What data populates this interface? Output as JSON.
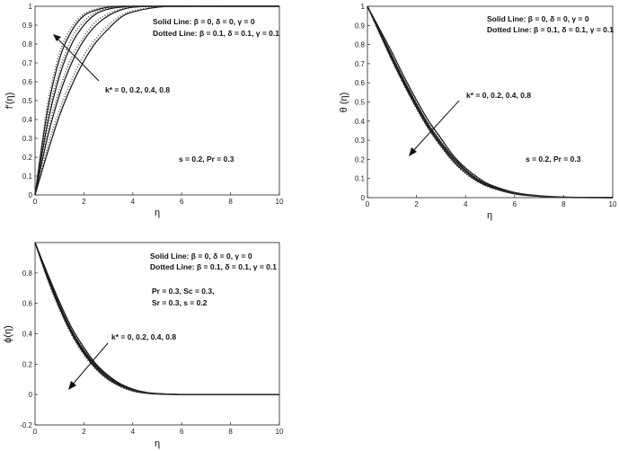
{
  "figure": {
    "panels": [
      {
        "xlabel": "η",
        "ylabel": "f′(η)",
        "legend_solid": "Solid Line: β = 0, δ = 0, γ = 0",
        "legend_dotted": "Dotted Line: β = 0.1, δ = 0.1, γ = 0.1",
        "param_label": "k* = 0, 0.2, 0.4, 0.8",
        "note_lines": [
          "s = 0.2, Pr = 0.3"
        ]
      },
      {
        "xlabel": "η",
        "ylabel": "θ (η)",
        "legend_solid": "Solid Line: β = 0, δ = 0, γ = 0",
        "legend_dotted": "Dotted Line: β = 0.1, δ = 0.1, γ = 0.1",
        "param_label": "k* = 0, 0.2, 0.4, 0.8",
        "note_lines": [
          "s = 0.2, Pr = 0.3"
        ]
      },
      {
        "xlabel": "η",
        "ylabel": "ϕ(η)",
        "legend_solid": "Solid Line: β = 0, δ = 0, γ = 0",
        "legend_dotted": "Dotted Line: β = 0.1, δ = 0.1, γ = 0.1",
        "param_label": "k* = 0, 0.2, 0.4, 0.8",
        "note_lines": [
          "Pr = 0.3, Sc = 0.3,",
          "Sr = 0.3, s = 0.2"
        ]
      }
    ]
  },
  "chart_data": [
    {
      "type": "line",
      "xlim": [
        0,
        10
      ],
      "ylim": [
        0,
        1
      ],
      "xticks": [
        "0",
        "2",
        "4",
        "6",
        "8",
        "10"
      ],
      "yticks": [
        "0",
        "0.1",
        "0.2",
        "0.3",
        "0.4",
        "0.5",
        "0.6",
        "0.7",
        "0.8",
        "0.9",
        "1"
      ],
      "x": [
        0,
        0.5,
        1,
        1.5,
        2,
        2.5,
        3,
        3.5,
        4,
        5,
        6,
        8,
        10
      ],
      "series": [
        {
          "style": "solid",
          "values": [
            0,
            0.44,
            0.72,
            0.87,
            0.95,
            0.98,
            0.995,
            1,
            1,
            1,
            1,
            1,
            1
          ]
        },
        {
          "style": "solid",
          "values": [
            0,
            0.37,
            0.63,
            0.8,
            0.9,
            0.96,
            0.985,
            0.995,
            1,
            1,
            1,
            1,
            1
          ]
        },
        {
          "style": "solid",
          "values": [
            0,
            0.3,
            0.53,
            0.7,
            0.82,
            0.9,
            0.95,
            0.98,
            0.995,
            1,
            1,
            1,
            1
          ]
        },
        {
          "style": "solid",
          "values": [
            0,
            0.22,
            0.42,
            0.58,
            0.71,
            0.81,
            0.88,
            0.94,
            0.97,
            0.995,
            1,
            1,
            1
          ]
        },
        {
          "style": "dotted",
          "values": [
            0,
            0.47,
            0.75,
            0.89,
            0.96,
            0.985,
            0.997,
            1,
            1,
            1,
            1,
            1,
            1
          ]
        },
        {
          "style": "dotted",
          "values": [
            0,
            0.4,
            0.66,
            0.83,
            0.92,
            0.97,
            0.99,
            0.997,
            1,
            1,
            1,
            1,
            1
          ]
        },
        {
          "style": "dotted",
          "values": [
            0,
            0.33,
            0.56,
            0.73,
            0.84,
            0.92,
            0.96,
            0.985,
            0.997,
            1,
            1,
            1,
            1
          ]
        },
        {
          "style": "dotted",
          "values": [
            0,
            0.25,
            0.45,
            0.61,
            0.74,
            0.83,
            0.9,
            0.95,
            0.975,
            0.997,
            1,
            1,
            1
          ]
        }
      ]
    },
    {
      "type": "line",
      "xlim": [
        0,
        10
      ],
      "ylim": [
        0,
        1
      ],
      "xticks": [
        "0",
        "2",
        "4",
        "6",
        "8",
        "10"
      ],
      "yticks": [
        "0",
        "0.1",
        "0.2",
        "0.3",
        "0.4",
        "0.5",
        "0.6",
        "0.7",
        "0.8",
        "0.9",
        "1"
      ],
      "x": [
        0,
        0.5,
        1,
        1.5,
        2,
        2.5,
        3,
        3.5,
        4,
        4.5,
        5,
        6,
        7,
        8,
        9,
        10
      ],
      "series": [
        {
          "style": "solid",
          "values": [
            1,
            0.86,
            0.72,
            0.59,
            0.47,
            0.36,
            0.27,
            0.19,
            0.13,
            0.085,
            0.055,
            0.02,
            0.007,
            0.002,
            0.0005,
            0
          ]
        },
        {
          "style": "solid",
          "values": [
            1,
            0.865,
            0.73,
            0.6,
            0.48,
            0.37,
            0.28,
            0.2,
            0.14,
            0.09,
            0.06,
            0.022,
            0.008,
            0.002,
            0.0005,
            0
          ]
        },
        {
          "style": "solid",
          "values": [
            1,
            0.87,
            0.74,
            0.61,
            0.49,
            0.38,
            0.29,
            0.21,
            0.145,
            0.095,
            0.063,
            0.024,
            0.009,
            0.0025,
            0.0006,
            0
          ]
        },
        {
          "style": "solid",
          "values": [
            1,
            0.88,
            0.76,
            0.63,
            0.51,
            0.4,
            0.31,
            0.22,
            0.155,
            0.105,
            0.068,
            0.027,
            0.01,
            0.003,
            0.0007,
            0
          ]
        },
        {
          "style": "dotted",
          "values": [
            1,
            0.855,
            0.715,
            0.585,
            0.465,
            0.355,
            0.265,
            0.185,
            0.125,
            0.082,
            0.053,
            0.019,
            0.0065,
            0.0018,
            0.0004,
            0
          ]
        },
        {
          "style": "dotted",
          "values": [
            1,
            0.86,
            0.725,
            0.595,
            0.475,
            0.365,
            0.275,
            0.195,
            0.135,
            0.088,
            0.058,
            0.021,
            0.0075,
            0.002,
            0.0005,
            0
          ]
        },
        {
          "style": "dotted",
          "values": [
            1,
            0.865,
            0.735,
            0.605,
            0.485,
            0.375,
            0.285,
            0.205,
            0.142,
            0.093,
            0.061,
            0.023,
            0.0085,
            0.0023,
            0.0006,
            0
          ]
        },
        {
          "style": "dotted",
          "values": [
            1,
            0.875,
            0.755,
            0.625,
            0.505,
            0.395,
            0.305,
            0.215,
            0.15,
            0.1,
            0.066,
            0.026,
            0.0095,
            0.0028,
            0.0007,
            0
          ]
        }
      ]
    },
    {
      "type": "line",
      "xlim": [
        0,
        10
      ],
      "ylim": [
        -0.2,
        1
      ],
      "xticks": [
        "0",
        "2",
        "4",
        "6",
        "8",
        "10"
      ],
      "yticks": [
        "-0.2",
        "0",
        "0.2",
        "0.4",
        "0.6",
        "0.8"
      ],
      "x": [
        0,
        0.5,
        1,
        1.5,
        2,
        2.5,
        3,
        3.5,
        4,
        4.5,
        5,
        6,
        7,
        8,
        10
      ],
      "series": [
        {
          "style": "solid",
          "values": [
            1,
            0.77,
            0.57,
            0.4,
            0.27,
            0.17,
            0.1,
            0.055,
            0.025,
            0.01,
            0.004,
            0,
            0,
            0,
            0
          ]
        },
        {
          "style": "solid",
          "values": [
            1,
            0.78,
            0.58,
            0.41,
            0.28,
            0.18,
            0.11,
            0.06,
            0.028,
            0.012,
            0.005,
            0,
            0,
            0,
            0
          ]
        },
        {
          "style": "solid",
          "values": [
            1,
            0.79,
            0.59,
            0.42,
            0.29,
            0.19,
            0.115,
            0.065,
            0.032,
            0.014,
            0.006,
            0,
            0,
            0,
            0
          ]
        },
        {
          "style": "solid",
          "values": [
            1,
            0.8,
            0.61,
            0.44,
            0.31,
            0.2,
            0.125,
            0.07,
            0.036,
            0.016,
            0.007,
            0,
            0,
            0,
            0
          ]
        },
        {
          "style": "dotted",
          "values": [
            1,
            0.76,
            0.56,
            0.39,
            0.26,
            0.165,
            0.095,
            0.05,
            0.022,
            0.009,
            0.003,
            0,
            0,
            0,
            0
          ]
        },
        {
          "style": "dotted",
          "values": [
            1,
            0.77,
            0.57,
            0.4,
            0.27,
            0.175,
            0.105,
            0.055,
            0.025,
            0.011,
            0.004,
            0,
            0,
            0,
            0
          ]
        },
        {
          "style": "dotted",
          "values": [
            1,
            0.78,
            0.58,
            0.41,
            0.28,
            0.185,
            0.11,
            0.06,
            0.03,
            0.013,
            0.005,
            0,
            0,
            0,
            0
          ]
        },
        {
          "style": "dotted",
          "values": [
            1,
            0.79,
            0.6,
            0.43,
            0.3,
            0.195,
            0.12,
            0.065,
            0.033,
            0.015,
            0.006,
            0,
            0,
            0,
            0
          ]
        }
      ]
    }
  ]
}
